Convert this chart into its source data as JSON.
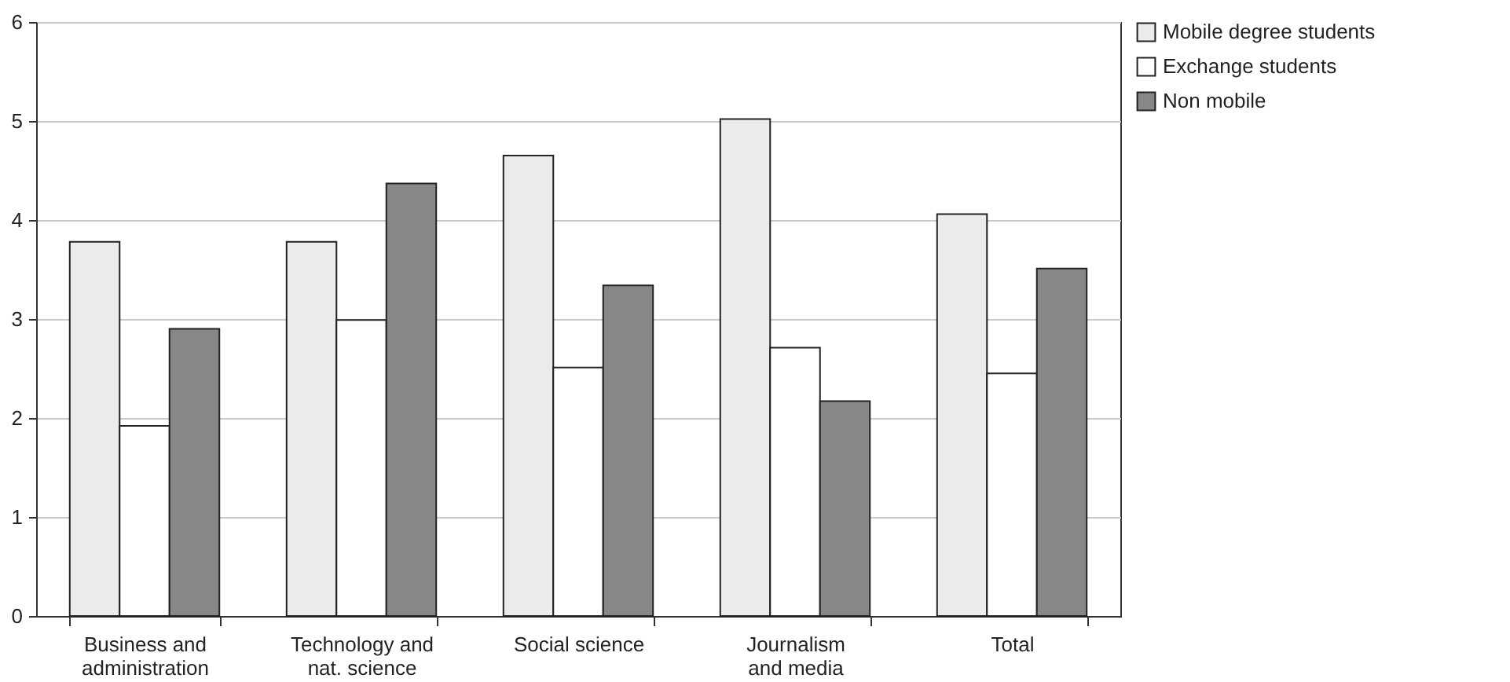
{
  "chart_data": {
    "type": "bar",
    "categories": [
      "Business and administration",
      "Technology and nat. science",
      "Social science",
      "Journalism and media",
      "Total"
    ],
    "series": [
      {
        "name": "Mobile degree students",
        "color": "#ebebeb",
        "values": [
          3.78,
          3.78,
          4.65,
          5.02,
          4.06
        ]
      },
      {
        "name": "Exchange students",
        "color": "#ffffff",
        "values": [
          1.92,
          2.99,
          2.51,
          2.71,
          2.45
        ]
      },
      {
        "name": "Non mobile",
        "color": "#878787",
        "values": [
          2.9,
          4.37,
          3.34,
          2.17,
          3.51
        ]
      }
    ],
    "ylim": [
      0,
      6
    ],
    "yticks": [
      0,
      1,
      2,
      3,
      4,
      5,
      6
    ],
    "grid": "y",
    "legend": "right"
  }
}
